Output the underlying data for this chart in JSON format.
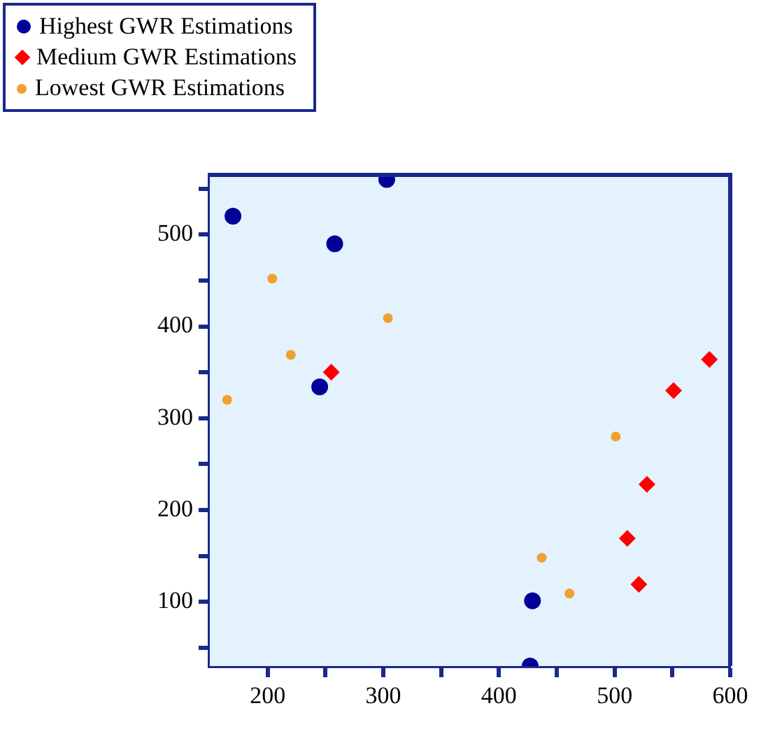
{
  "chart_data": {
    "type": "scatter",
    "legend": "top left",
    "xlim": [
      150,
      600
    ],
    "xticks": [
      200,
      {
        "value": 250,
        "label": null
      },
      300,
      {
        "value": 350,
        "label": null
      },
      400,
      {
        "value": 450,
        "label": null
      },
      500,
      {
        "value": 550,
        "label": null
      },
      600
    ],
    "ylim": [
      30,
      565
    ],
    "yticks": [
      {
        "value": 50,
        "label": null
      },
      100,
      {
        "value": 150,
        "label": null
      },
      200,
      {
        "value": 250,
        "label": null
      },
      300,
      {
        "value": 350,
        "label": null
      },
      400,
      {
        "value": 450,
        "label": null
      },
      500,
      {
        "value": 550,
        "label": null
      }
    ],
    "series": [
      {
        "name": "Highest GWR Estimations",
        "color": "#000099",
        "marker": "circle",
        "x": [
          170,
          258,
          303,
          245,
          429,
          427
        ],
        "values": [
          520,
          490,
          560,
          334,
          101,
          30
        ]
      },
      {
        "name": "Medium GWR Estimations",
        "color": "#ff0000",
        "marker": "diamond",
        "x": [
          255,
          582,
          551,
          528,
          511,
          521
        ],
        "values": [
          350,
          364,
          330,
          228,
          169,
          119
        ]
      },
      {
        "name": "Lowest GWR Estimations",
        "color": "#f0a030",
        "marker": "circle",
        "x": [
          204,
          304,
          220,
          165,
          501,
          437,
          461
        ],
        "values": [
          452,
          409,
          369,
          320,
          280,
          148,
          109
        ]
      }
    ]
  }
}
